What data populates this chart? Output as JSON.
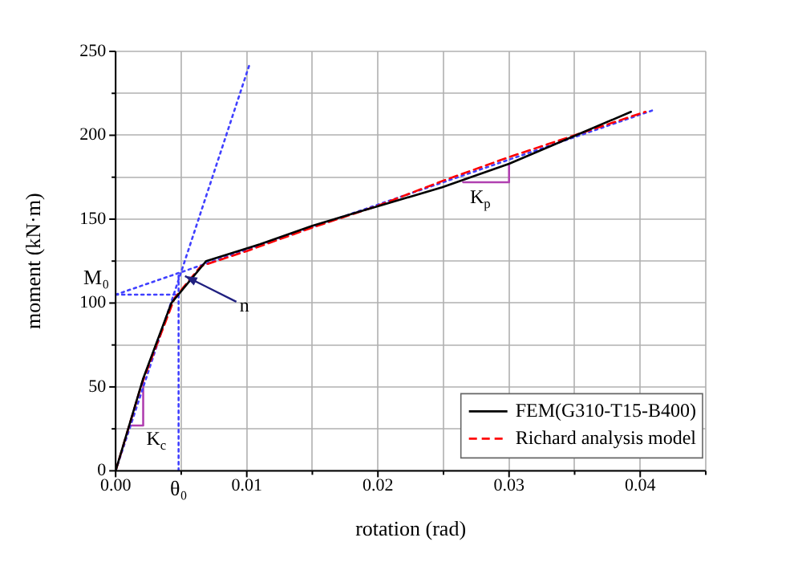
{
  "chart_data": {
    "type": "line",
    "xlabel": "rotation (rad)",
    "ylabel": "moment (kN·m)",
    "xlim": [
      0,
      0.045
    ],
    "ylim": [
      0,
      250
    ],
    "xticks": [
      {
        "value": 0,
        "label": "0.00"
      },
      {
        "value": 0.005,
        "label": null
      },
      {
        "value": 0.01,
        "label": "0.01"
      },
      {
        "value": 0.015,
        "label": null
      },
      {
        "value": 0.02,
        "label": "0.02"
      },
      {
        "value": 0.025,
        "label": null
      },
      {
        "value": 0.03,
        "label": "0.03"
      },
      {
        "value": 0.035,
        "label": null
      },
      {
        "value": 0.04,
        "label": "0.04"
      },
      {
        "value": 0.045,
        "label": null
      }
    ],
    "yticks": [
      0,
      {
        "value": 25,
        "label": null
      },
      50,
      {
        "value": 75,
        "label": null
      },
      100,
      {
        "value": 125,
        "label": null
      },
      150,
      {
        "value": 175,
        "label": null
      },
      200,
      {
        "value": 225,
        "label": null
      },
      250
    ],
    "grid": true,
    "legend": "bottom right",
    "marker": "none",
    "series": [
      {
        "name": "FEM(G310-T15-B400)",
        "color": "#000000",
        "line_style": "solid",
        "x": [
          0,
          0.0021,
          0.00425,
          0.0069,
          0.011,
          0.015,
          0.0184,
          0.0249,
          0.03,
          0.0351,
          0.0393
        ],
        "values": [
          0,
          55,
          100,
          125,
          135,
          146,
          154,
          169,
          183,
          200,
          214
        ]
      },
      {
        "name": "Richard analysis model",
        "color": "#ff0000",
        "line_style": "dashed",
        "x": [
          0,
          0.002,
          0.0045,
          0.0065,
          0.01,
          0.015,
          0.02,
          0.025,
          0.03,
          0.035,
          0.0404
        ],
        "values": [
          0,
          52,
          103,
          122,
          131,
          145,
          158,
          173,
          187,
          200,
          214
        ]
      },
      {
        "color": "#4040ff",
        "line_style": "dotted",
        "x": [
          0,
          0.0102
        ],
        "values": [
          0,
          242
        ]
      },
      {
        "color": "#4040ff",
        "line_style": "dotted",
        "x": [
          0,
          0.041
        ],
        "values": [
          105,
          215
        ]
      },
      {
        "color": "#4040ff",
        "line_style": "dotted",
        "x": [
          0,
          0.0048
        ],
        "values": [
          105,
          105
        ]
      },
      {
        "color": "#4040ff",
        "line_style": "dotted",
        "x": [
          0.0048,
          0.0048
        ],
        "values": [
          0,
          118
        ]
      },
      {
        "color": "#b040b0",
        "line_style": "solid",
        "x": [
          0.0012,
          0.0021,
          0.0021
        ],
        "values": [
          27,
          27,
          55
        ]
      },
      {
        "color": "#b040b0",
        "line_style": "solid",
        "x": [
          0.0265,
          0.03,
          0.03
        ],
        "values": [
          172,
          172,
          183
        ]
      }
    ],
    "annotations": [
      {
        "text": "M₀",
        "x": 0,
        "y": 105
      },
      {
        "text": "θ₀",
        "x": 0.0048,
        "y": 0
      },
      {
        "text": "n",
        "x": 0.0048,
        "y": 118
      },
      {
        "text": "K$_{c}$",
        "x": 0.0021,
        "y": 27
      },
      {
        "text": "K$_{p}$",
        "x": 0.03,
        "y": 172
      }
    ]
  }
}
